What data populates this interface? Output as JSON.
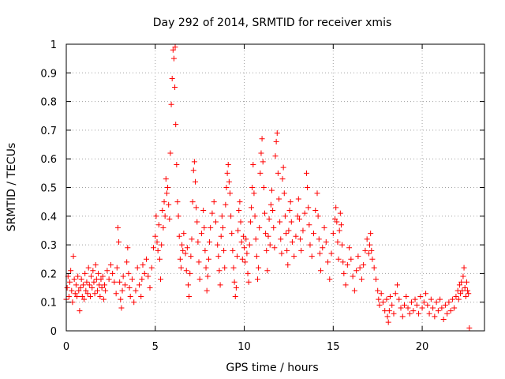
{
  "chart_data": {
    "type": "scatter",
    "title": "Day 292 of 2014, SRMTID for receiver xmis",
    "xlabel": "GPS time / hours",
    "ylabel": "SRMTID / TECUs",
    "xlim": [
      0,
      23.5
    ],
    "ylim": [
      0,
      1
    ],
    "x_ticks": [
      {
        "value": 0,
        "label": "0"
      },
      {
        "value": 5,
        "label": "5"
      },
      {
        "value": 10,
        "label": "10"
      },
      {
        "value": 15,
        "label": "15"
      },
      {
        "value": 20,
        "label": "20"
      }
    ],
    "y_ticks": [
      {
        "value": 0,
        "label": "0"
      },
      {
        "value": 0.1,
        "label": "0.1"
      },
      {
        "value": 0.2,
        "label": "0.2"
      },
      {
        "value": 0.3,
        "label": "0.3"
      },
      {
        "value": 0.4,
        "label": "0.4"
      },
      {
        "value": 0.5,
        "label": "0.5"
      },
      {
        "value": 0.6,
        "label": "0.6"
      },
      {
        "value": 0.7,
        "label": "0.7"
      },
      {
        "value": 0.8,
        "label": "0.8"
      },
      {
        "value": 0.9,
        "label": "0.9"
      },
      {
        "value": 1,
        "label": "1"
      }
    ],
    "grid": true,
    "marker": "+",
    "color": "#ff0000",
    "points": [
      [
        0.0,
        0.11
      ],
      [
        0.05,
        0.15
      ],
      [
        0.1,
        0.19
      ],
      [
        0.15,
        0.12
      ],
      [
        0.2,
        0.17
      ],
      [
        0.25,
        0.21
      ],
      [
        0.3,
        0.14
      ],
      [
        0.35,
        0.1
      ],
      [
        0.4,
        0.26
      ],
      [
        0.45,
        0.18
      ],
      [
        0.5,
        0.13
      ],
      [
        0.55,
        0.16
      ],
      [
        0.6,
        0.12
      ],
      [
        0.65,
        0.19
      ],
      [
        0.7,
        0.14
      ],
      [
        0.75,
        0.07
      ],
      [
        0.8,
        0.15
      ],
      [
        0.85,
        0.18
      ],
      [
        0.9,
        0.12
      ],
      [
        0.95,
        0.16
      ],
      [
        1.0,
        0.11
      ],
      [
        1.05,
        0.2
      ],
      [
        1.1,
        0.14
      ],
      [
        1.15,
        0.17
      ],
      [
        1.2,
        0.13
      ],
      [
        1.25,
        0.22
      ],
      [
        1.3,
        0.16
      ],
      [
        1.35,
        0.12
      ],
      [
        1.4,
        0.19
      ],
      [
        1.45,
        0.15
      ],
      [
        1.5,
        0.21
      ],
      [
        1.55,
        0.17
      ],
      [
        1.6,
        0.13
      ],
      [
        1.65,
        0.23
      ],
      [
        1.7,
        0.18
      ],
      [
        1.75,
        0.14
      ],
      [
        1.8,
        0.2
      ],
      [
        1.85,
        0.16
      ],
      [
        1.9,
        0.12
      ],
      [
        1.95,
        0.18
      ],
      [
        2.0,
        0.15
      ],
      [
        2.05,
        0.19
      ],
      [
        2.1,
        0.11
      ],
      [
        2.15,
        0.16
      ],
      [
        2.2,
        0.14
      ],
      [
        2.3,
        0.21
      ],
      [
        2.4,
        0.18
      ],
      [
        2.5,
        0.23
      ],
      [
        2.6,
        0.2
      ],
      [
        2.7,
        0.17
      ],
      [
        2.8,
        0.13
      ],
      [
        2.85,
        0.22
      ],
      [
        2.9,
        0.36
      ],
      [
        2.95,
        0.31
      ],
      [
        3.0,
        0.17
      ],
      [
        3.05,
        0.11
      ],
      [
        3.1,
        0.08
      ],
      [
        3.15,
        0.14
      ],
      [
        3.2,
        0.19
      ],
      [
        3.3,
        0.16
      ],
      [
        3.4,
        0.24
      ],
      [
        3.45,
        0.29
      ],
      [
        3.5,
        0.2
      ],
      [
        3.55,
        0.15
      ],
      [
        3.6,
        0.12
      ],
      [
        3.7,
        0.18
      ],
      [
        3.8,
        0.1
      ],
      [
        3.9,
        0.14
      ],
      [
        4.0,
        0.22
      ],
      [
        4.1,
        0.16
      ],
      [
        4.2,
        0.12
      ],
      [
        4.25,
        0.18
      ],
      [
        4.3,
        0.23
      ],
      [
        4.4,
        0.2
      ],
      [
        4.5,
        0.25
      ],
      [
        4.6,
        0.19
      ],
      [
        4.7,
        0.15
      ],
      [
        4.8,
        0.22
      ],
      [
        4.9,
        0.29
      ],
      [
        5.0,
        0.33
      ],
      [
        5.05,
        0.4
      ],
      [
        5.1,
        0.31
      ],
      [
        5.15,
        0.28
      ],
      [
        5.2,
        0.37
      ],
      [
        5.25,
        0.25
      ],
      [
        5.3,
        0.18
      ],
      [
        5.35,
        0.3
      ],
      [
        5.4,
        0.42
      ],
      [
        5.45,
        0.36
      ],
      [
        5.5,
        0.45
      ],
      [
        5.55,
        0.4
      ],
      [
        5.6,
        0.53
      ],
      [
        5.65,
        0.48
      ],
      [
        5.7,
        0.5
      ],
      [
        5.75,
        0.44
      ],
      [
        5.8,
        0.39
      ],
      [
        5.85,
        0.62
      ],
      [
        5.9,
        0.79
      ],
      [
        5.95,
        0.88
      ],
      [
        6.0,
        0.98
      ],
      [
        6.05,
        0.95
      ],
      [
        6.1,
        0.85
      ],
      [
        6.12,
        0.99
      ],
      [
        6.15,
        0.72
      ],
      [
        6.2,
        0.58
      ],
      [
        6.25,
        0.45
      ],
      [
        6.3,
        0.4
      ],
      [
        6.35,
        0.33
      ],
      [
        6.4,
        0.25
      ],
      [
        6.45,
        0.22
      ],
      [
        6.5,
        0.3
      ],
      [
        6.55,
        0.28
      ],
      [
        6.6,
        0.34
      ],
      [
        6.7,
        0.27
      ],
      [
        6.75,
        0.21
      ],
      [
        6.8,
        0.29
      ],
      [
        6.85,
        0.16
      ],
      [
        6.9,
        0.12
      ],
      [
        6.95,
        0.2
      ],
      [
        7.0,
        0.26
      ],
      [
        7.05,
        0.32
      ],
      [
        7.1,
        0.45
      ],
      [
        7.15,
        0.56
      ],
      [
        7.2,
        0.59
      ],
      [
        7.25,
        0.52
      ],
      [
        7.3,
        0.43
      ],
      [
        7.35,
        0.38
      ],
      [
        7.4,
        0.31
      ],
      [
        7.45,
        0.24
      ],
      [
        7.5,
        0.18
      ],
      [
        7.6,
        0.34
      ],
      [
        7.7,
        0.42
      ],
      [
        7.75,
        0.36
      ],
      [
        7.8,
        0.28
      ],
      [
        7.85,
        0.22
      ],
      [
        7.9,
        0.14
      ],
      [
        7.95,
        0.19
      ],
      [
        8.0,
        0.25
      ],
      [
        8.05,
        0.31
      ],
      [
        8.1,
        0.36
      ],
      [
        8.2,
        0.41
      ],
      [
        8.3,
        0.45
      ],
      [
        8.4,
        0.38
      ],
      [
        8.5,
        0.3
      ],
      [
        8.55,
        0.26
      ],
      [
        8.6,
        0.21
      ],
      [
        8.65,
        0.16
      ],
      [
        8.7,
        0.33
      ],
      [
        8.75,
        0.4
      ],
      [
        8.8,
        0.36
      ],
      [
        8.85,
        0.28
      ],
      [
        8.9,
        0.22
      ],
      [
        8.95,
        0.44
      ],
      [
        9.0,
        0.5
      ],
      [
        9.05,
        0.55
      ],
      [
        9.1,
        0.58
      ],
      [
        9.15,
        0.52
      ],
      [
        9.2,
        0.48
      ],
      [
        9.25,
        0.4
      ],
      [
        9.3,
        0.34
      ],
      [
        9.35,
        0.28
      ],
      [
        9.4,
        0.22
      ],
      [
        9.45,
        0.17
      ],
      [
        9.5,
        0.12
      ],
      [
        9.55,
        0.15
      ],
      [
        9.6,
        0.26
      ],
      [
        9.65,
        0.35
      ],
      [
        9.7,
        0.42
      ],
      [
        9.75,
        0.45
      ],
      [
        9.8,
        0.38
      ],
      [
        9.85,
        0.31
      ],
      [
        9.9,
        0.25
      ],
      [
        9.95,
        0.33
      ],
      [
        10.0,
        0.29
      ],
      [
        10.05,
        0.24
      ],
      [
        10.1,
        0.32
      ],
      [
        10.15,
        0.27
      ],
      [
        10.2,
        0.2
      ],
      [
        10.25,
        0.17
      ],
      [
        10.3,
        0.3
      ],
      [
        10.35,
        0.38
      ],
      [
        10.4,
        0.43
      ],
      [
        10.45,
        0.5
      ],
      [
        10.5,
        0.58
      ],
      [
        10.55,
        0.48
      ],
      [
        10.6,
        0.4
      ],
      [
        10.65,
        0.32
      ],
      [
        10.7,
        0.26
      ],
      [
        10.75,
        0.18
      ],
      [
        10.8,
        0.22
      ],
      [
        10.85,
        0.36
      ],
      [
        10.9,
        0.55
      ],
      [
        10.95,
        0.62
      ],
      [
        11.0,
        0.67
      ],
      [
        11.05,
        0.59
      ],
      [
        11.1,
        0.5
      ],
      [
        11.15,
        0.41
      ],
      [
        11.2,
        0.34
      ],
      [
        11.25,
        0.28
      ],
      [
        11.3,
        0.21
      ],
      [
        11.35,
        0.33
      ],
      [
        11.4,
        0.39
      ],
      [
        11.45,
        0.3
      ],
      [
        11.5,
        0.44
      ],
      [
        11.55,
        0.49
      ],
      [
        11.6,
        0.42
      ],
      [
        11.65,
        0.36
      ],
      [
        11.7,
        0.29
      ],
      [
        11.75,
        0.61
      ],
      [
        11.8,
        0.66
      ],
      [
        11.85,
        0.69
      ],
      [
        11.9,
        0.55
      ],
      [
        11.95,
        0.46
      ],
      [
        12.0,
        0.38
      ],
      [
        12.05,
        0.32
      ],
      [
        12.1,
        0.27
      ],
      [
        12.15,
        0.53
      ],
      [
        12.2,
        0.57
      ],
      [
        12.25,
        0.48
      ],
      [
        12.3,
        0.4
      ],
      [
        12.35,
        0.34
      ],
      [
        12.4,
        0.28
      ],
      [
        12.45,
        0.23
      ],
      [
        12.5,
        0.35
      ],
      [
        12.55,
        0.42
      ],
      [
        12.6,
        0.45
      ],
      [
        12.65,
        0.38
      ],
      [
        12.7,
        0.31
      ],
      [
        12.8,
        0.26
      ],
      [
        12.9,
        0.33
      ],
      [
        13.0,
        0.4
      ],
      [
        13.05,
        0.46
      ],
      [
        13.1,
        0.39
      ],
      [
        13.15,
        0.32
      ],
      [
        13.2,
        0.28
      ],
      [
        13.3,
        0.35
      ],
      [
        13.4,
        0.41
      ],
      [
        13.5,
        0.55
      ],
      [
        13.55,
        0.5
      ],
      [
        13.6,
        0.43
      ],
      [
        13.65,
        0.37
      ],
      [
        13.7,
        0.3
      ],
      [
        13.8,
        0.26
      ],
      [
        13.9,
        0.34
      ],
      [
        14.0,
        0.42
      ],
      [
        14.1,
        0.48
      ],
      [
        14.15,
        0.4
      ],
      [
        14.2,
        0.32
      ],
      [
        14.25,
        0.27
      ],
      [
        14.3,
        0.21
      ],
      [
        14.4,
        0.29
      ],
      [
        14.5,
        0.36
      ],
      [
        14.6,
        0.31
      ],
      [
        14.7,
        0.24
      ],
      [
        14.8,
        0.18
      ],
      [
        14.9,
        0.27
      ],
      [
        15.0,
        0.34
      ],
      [
        15.1,
        0.39
      ],
      [
        15.15,
        0.43
      ],
      [
        15.2,
        0.38
      ],
      [
        15.25,
        0.31
      ],
      [
        15.3,
        0.25
      ],
      [
        15.35,
        0.35
      ],
      [
        15.4,
        0.41
      ],
      [
        15.45,
        0.37
      ],
      [
        15.5,
        0.3
      ],
      [
        15.55,
        0.24
      ],
      [
        15.6,
        0.2
      ],
      [
        15.7,
        0.16
      ],
      [
        15.8,
        0.23
      ],
      [
        15.9,
        0.29
      ],
      [
        16.0,
        0.25
      ],
      [
        16.1,
        0.19
      ],
      [
        16.2,
        0.14
      ],
      [
        16.3,
        0.21
      ],
      [
        16.4,
        0.26
      ],
      [
        16.5,
        0.22
      ],
      [
        16.6,
        0.18
      ],
      [
        16.7,
        0.23
      ],
      [
        16.8,
        0.28
      ],
      [
        16.9,
        0.32
      ],
      [
        17.0,
        0.27
      ],
      [
        17.05,
        0.3
      ],
      [
        17.1,
        0.34
      ],
      [
        17.15,
        0.28
      ],
      [
        17.2,
        0.25
      ],
      [
        17.3,
        0.22
      ],
      [
        17.4,
        0.18
      ],
      [
        17.5,
        0.14
      ],
      [
        17.55,
        0.11
      ],
      [
        17.6,
        0.09
      ],
      [
        17.7,
        0.13
      ],
      [
        17.8,
        0.1
      ],
      [
        17.9,
        0.07
      ],
      [
        18.0,
        0.11
      ],
      [
        18.05,
        0.05
      ],
      [
        18.1,
        0.03
      ],
      [
        18.15,
        0.07
      ],
      [
        18.2,
        0.12
      ],
      [
        18.3,
        0.09
      ],
      [
        18.4,
        0.06
      ],
      [
        18.5,
        0.13
      ],
      [
        18.6,
        0.16
      ],
      [
        18.7,
        0.11
      ],
      [
        18.8,
        0.08
      ],
      [
        18.9,
        0.05
      ],
      [
        19.0,
        0.09
      ],
      [
        19.1,
        0.12
      ],
      [
        19.2,
        0.08
      ],
      [
        19.3,
        0.06
      ],
      [
        19.4,
        0.1
      ],
      [
        19.5,
        0.07
      ],
      [
        19.6,
        0.11
      ],
      [
        19.7,
        0.09
      ],
      [
        19.8,
        0.06
      ],
      [
        19.9,
        0.12
      ],
      [
        20.0,
        0.08
      ],
      [
        20.1,
        0.1
      ],
      [
        20.2,
        0.13
      ],
      [
        20.3,
        0.09
      ],
      [
        20.4,
        0.06
      ],
      [
        20.5,
        0.11
      ],
      [
        20.6,
        0.08
      ],
      [
        20.7,
        0.05
      ],
      [
        20.8,
        0.1
      ],
      [
        20.9,
        0.07
      ],
      [
        21.0,
        0.11
      ],
      [
        21.1,
        0.08
      ],
      [
        21.2,
        0.04
      ],
      [
        21.3,
        0.09
      ],
      [
        21.4,
        0.06
      ],
      [
        21.5,
        0.1
      ],
      [
        21.6,
        0.07
      ],
      [
        21.7,
        0.11
      ],
      [
        21.8,
        0.08
      ],
      [
        21.9,
        0.12
      ],
      [
        22.0,
        0.14
      ],
      [
        22.05,
        0.11
      ],
      [
        22.1,
        0.16
      ],
      [
        22.15,
        0.13
      ],
      [
        22.2,
        0.17
      ],
      [
        22.25,
        0.14
      ],
      [
        22.3,
        0.19
      ],
      [
        22.35,
        0.22
      ],
      [
        22.4,
        0.15
      ],
      [
        22.45,
        0.12
      ],
      [
        22.5,
        0.17
      ],
      [
        22.55,
        0.14
      ],
      [
        22.6,
        0.13
      ],
      [
        22.65,
        0.01
      ]
    ]
  }
}
